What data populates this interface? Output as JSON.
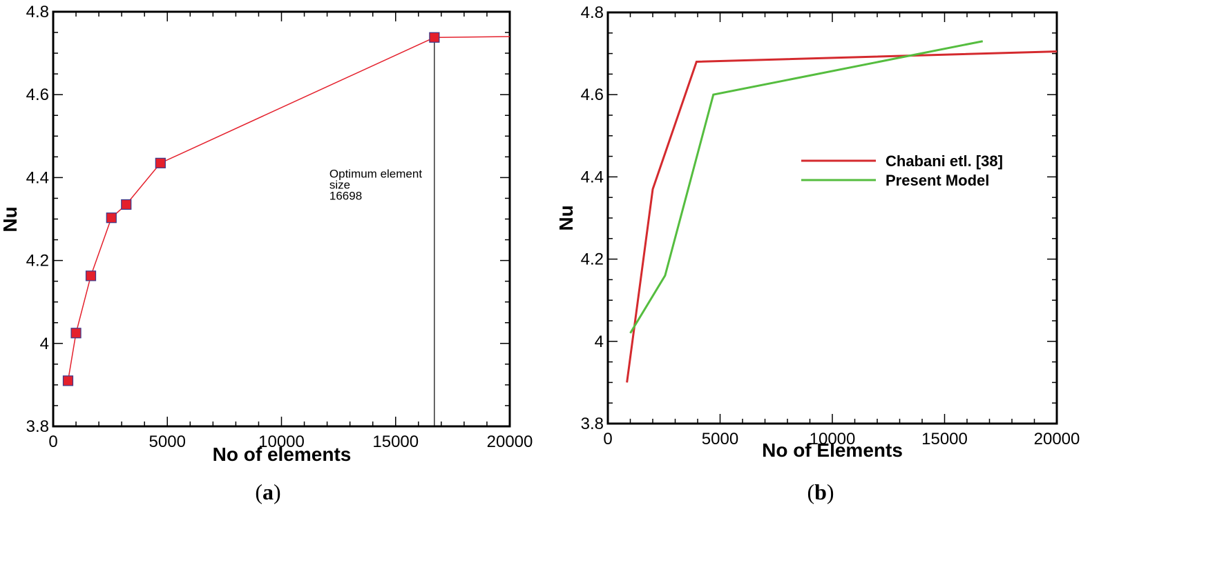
{
  "chart_data": [
    {
      "type": "line",
      "panel_label": "a",
      "xlabel": "No of elements",
      "ylabel": "Nu",
      "xlim": [
        0,
        20000
      ],
      "ylim": [
        3.8,
        4.8
      ],
      "xticks": [
        0,
        5000,
        10000,
        15000,
        20000
      ],
      "xtick_labels": [
        "0",
        "5000",
        "10000",
        "15000",
        "20000"
      ],
      "yticks": [
        3.8,
        4.0,
        4.2,
        4.4,
        4.6,
        4.8
      ],
      "ytick_labels": [
        "3.8",
        "4",
        "4.2",
        "4.4",
        "4.6",
        "4.8"
      ],
      "grid": false,
      "series": [
        {
          "color": "#e4202c",
          "marker": "square",
          "x": [
            650,
            1000,
            1650,
            2550,
            3200,
            4700,
            16698
          ],
          "y": [
            3.91,
            4.025,
            4.163,
            4.303,
            4.335,
            4.435,
            4.738
          ],
          "extension": {
            "x": [
              16698,
              20000
            ],
            "y": [
              4.738,
              4.74
            ]
          }
        }
      ],
      "vline": {
        "x": 16698,
        "y_top": 4.738
      },
      "annotation": {
        "lines": [
          "Optimum element",
          "size",
          "16698"
        ],
        "x": 12100,
        "y": 4.4
      }
    },
    {
      "type": "line",
      "panel_label": "b",
      "xlabel": "No of Elements",
      "ylabel": "Nu",
      "xlim": [
        0,
        20000
      ],
      "ylim": [
        3.8,
        4.8
      ],
      "xticks": [
        0,
        5000,
        10000,
        15000,
        20000
      ],
      "xtick_labels": [
        "0",
        "5000",
        "10000",
        "15000",
        "20000"
      ],
      "yticks": [
        3.8,
        4.0,
        4.2,
        4.4,
        4.6,
        4.8
      ],
      "ytick_labels": [
        "3.8",
        "4",
        "4.2",
        "4.4",
        "4.6",
        "4.8"
      ],
      "grid": false,
      "legend_position": "upper-right",
      "series": [
        {
          "name": "Chabani etl. [38]",
          "color": "#d42a2e",
          "x": [
            850,
            2000,
            3950,
            20000
          ],
          "y": [
            3.9,
            4.37,
            4.68,
            4.705
          ]
        },
        {
          "name": "Present Model",
          "color": "#55bd3f",
          "x": [
            1000,
            2550,
            4700,
            16700
          ],
          "y": [
            4.02,
            4.16,
            4.6,
            4.73
          ]
        }
      ]
    }
  ]
}
